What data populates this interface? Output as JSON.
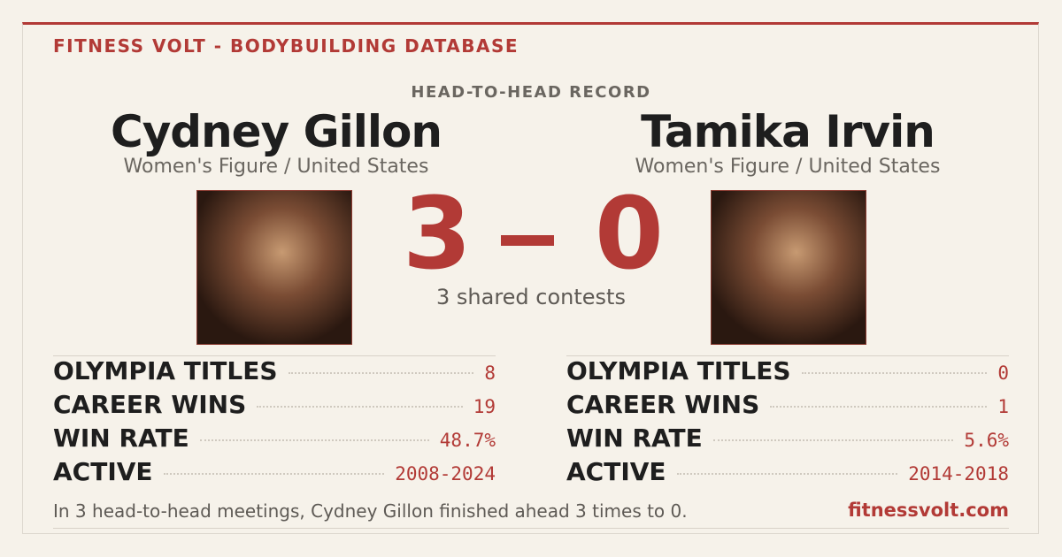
{
  "header": {
    "brand": "FITNESS VOLT - BODYBUILDING DATABASE",
    "section": "HEAD-TO-HEAD RECORD"
  },
  "athletes": [
    {
      "name": "Cydney Gillon",
      "division": "Women's Figure / United States",
      "score": 3,
      "stats": [
        {
          "label": "OLYMPIA TITLES",
          "value": 8
        },
        {
          "label": "CAREER WINS",
          "value": 19
        },
        {
          "label": "WIN RATE",
          "value": "48.7%"
        },
        {
          "label": "ACTIVE",
          "value": "2008-2024"
        }
      ]
    },
    {
      "name": "Tamika Irvin",
      "division": "Women's Figure / United States",
      "score": 0,
      "stats": [
        {
          "label": "OLYMPIA TITLES",
          "value": 0
        },
        {
          "label": "CAREER WINS",
          "value": 1
        },
        {
          "label": "WIN RATE",
          "value": "5.6%"
        },
        {
          "label": "ACTIVE",
          "value": "2014-2018"
        }
      ]
    }
  ],
  "shared": "3 shared contests",
  "footer": {
    "summary": "In 3 head-to-head meetings, Cydney Gillon finished ahead 3 times to 0.",
    "site": "fitnessvolt.com"
  }
}
